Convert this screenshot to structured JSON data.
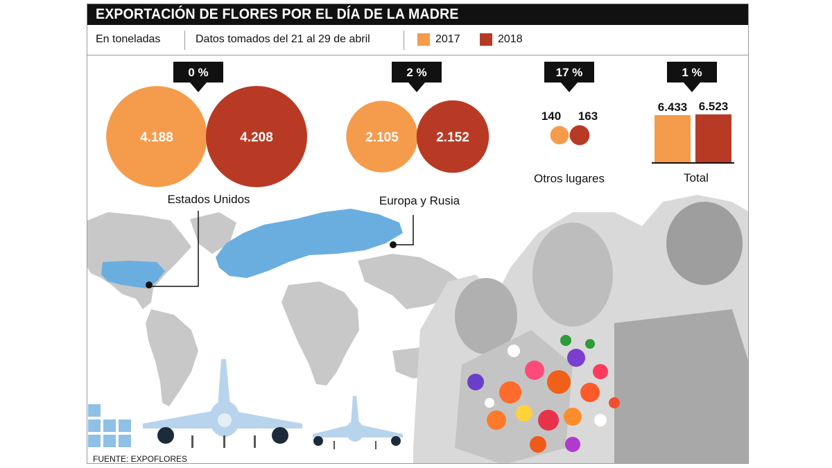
{
  "title": "EXPORTACIÓN DE FLORES POR EL DÍA DE LA MADRE",
  "subheader": {
    "unit": "En toneladas",
    "period": "Datos tomados del 21 al 29 de abril"
  },
  "legend": [
    {
      "label": "2017",
      "color": "#f59c4c"
    },
    {
      "label": "2018",
      "color": "#b83a25"
    }
  ],
  "colors": {
    "y2017": "#f59c4c",
    "y2018": "#b83a25",
    "map_highlight": "#6aaee0",
    "map_gray": "#c8c8c8",
    "plane": "#b8d4ec"
  },
  "chart_data": {
    "type": "bubble",
    "series_names": [
      "2017",
      "2018"
    ],
    "unit": "toneladas",
    "groups": [
      {
        "name": "Estados Unidos",
        "change": "0 %",
        "values": [
          4188,
          4208
        ],
        "labels": [
          "4.188",
          "4.208"
        ]
      },
      {
        "name": "Europa y Rusia",
        "change": "2 %",
        "values": [
          2105,
          2152
        ],
        "labels": [
          "2.105",
          "2.152"
        ]
      },
      {
        "name": "Otros lugares",
        "change": "17 %",
        "values": [
          140,
          163
        ],
        "labels": [
          "140",
          "163"
        ]
      },
      {
        "name": "Total",
        "change": "1 %",
        "values": [
          6433,
          6523
        ],
        "labels": [
          "6.433",
          "6.523"
        ]
      }
    ]
  },
  "source": "FUENTE: EXPOFLORES"
}
